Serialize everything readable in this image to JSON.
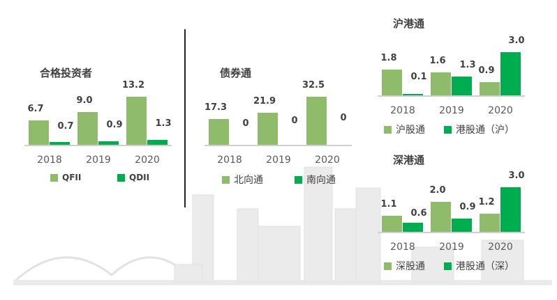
{
  "colors": {
    "light": "#8fbc6b",
    "dark": "#00ad4e"
  },
  "chart_data": [
    {
      "type": "bar",
      "title": "合格投资者",
      "categories": [
        "2018",
        "2019",
        "2020"
      ],
      "series": [
        {
          "name": "QFII",
          "values": [
            6.7,
            9.0,
            13.2
          ],
          "labels": [
            "6.7",
            "9.0",
            "13.2"
          ]
        },
        {
          "name": "QDII",
          "values": [
            0.7,
            0.9,
            1.3
          ],
          "labels": [
            "0.7",
            "0.9",
            "1.3"
          ]
        }
      ],
      "legend": "bottom"
    },
    {
      "type": "bar",
      "title": "债券通",
      "categories": [
        "2018",
        "2019",
        "2020"
      ],
      "series": [
        {
          "name": "北向通",
          "values": [
            17.3,
            21.9,
            32.5
          ],
          "labels": [
            "17.3",
            "21.9",
            "32.5"
          ]
        },
        {
          "name": "南向通",
          "values": [
            0,
            0,
            0
          ],
          "labels": [
            "0",
            "0",
            "0"
          ]
        }
      ],
      "legend": "bottom"
    },
    {
      "type": "bar",
      "title": "沪港通",
      "categories": [
        "2018",
        "2019",
        "2020"
      ],
      "series": [
        {
          "name": "沪股通",
          "values": [
            1.8,
            1.6,
            0.9
          ],
          "labels": [
            "1.8",
            "1.6",
            "0.9"
          ]
        },
        {
          "name": "港股通（沪）",
          "values": [
            0.1,
            1.3,
            3.0
          ],
          "labels": [
            "0.1",
            "1.3",
            "3.0"
          ]
        }
      ],
      "legend": "bottom"
    },
    {
      "type": "bar",
      "title": "深港通",
      "categories": [
        "2018",
        "2019",
        "2020"
      ],
      "series": [
        {
          "name": "深股通",
          "values": [
            1.1,
            2.0,
            1.2
          ],
          "labels": [
            "1.1",
            "2.0",
            "1.2"
          ]
        },
        {
          "name": "港股通（深）",
          "values": [
            0.6,
            0.9,
            3.0
          ],
          "labels": [
            "0.6",
            "0.9",
            "3.0"
          ]
        }
      ],
      "legend": "bottom"
    }
  ]
}
